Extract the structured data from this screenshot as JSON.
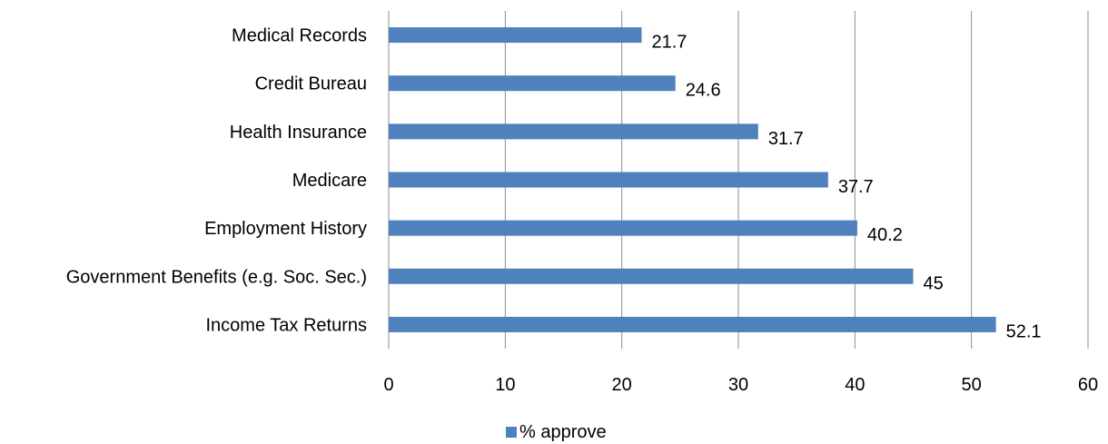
{
  "chart_data": {
    "type": "bar",
    "orientation": "horizontal",
    "categories": [
      "Medical Records",
      "Credit Bureau",
      "Health Insurance",
      "Medicare",
      "Employment History",
      "Government Benefits (e.g. Soc. Sec.)",
      "Income Tax Returns"
    ],
    "series": [
      {
        "name": "% approve",
        "values": [
          21.7,
          24.6,
          31.7,
          37.7,
          40.2,
          45,
          52.1
        ],
        "color": "#4f81bd"
      }
    ],
    "data_labels": [
      "21.7",
      "24.6",
      "31.7",
      "37.7",
      "40.2",
      "45",
      "52.1"
    ],
    "x_ticks": [
      0,
      10,
      20,
      30,
      40,
      50,
      60
    ],
    "x_tick_labels": [
      "0",
      "10",
      "20",
      "30",
      "40",
      "50",
      "60"
    ],
    "xlim": [
      0,
      60
    ],
    "grid": true,
    "legend_position": "bottom",
    "title": "",
    "xlabel": "",
    "ylabel": ""
  }
}
